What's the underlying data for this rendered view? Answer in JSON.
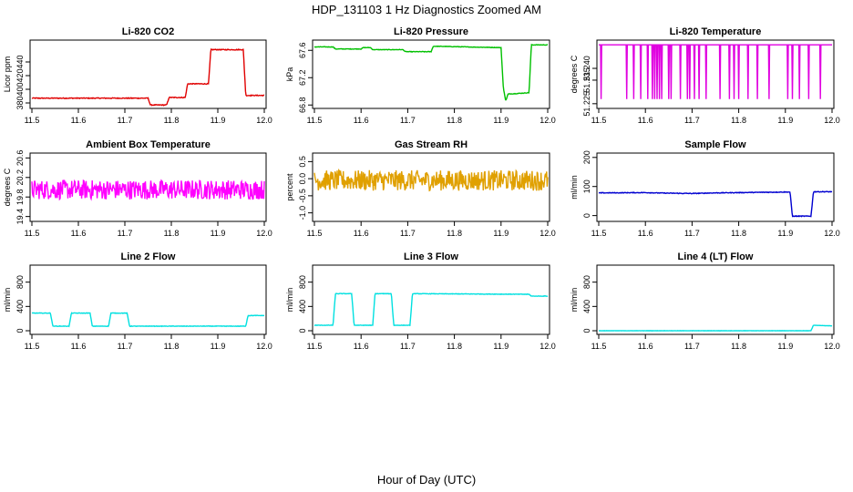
{
  "page": {
    "title": "HDP_131103  1 Hz Diagnostics Zoomed AM",
    "xlabel": "Hour of Day (UTC)"
  },
  "chart_data": [
    {
      "type": "line",
      "title": "Li-820 CO2",
      "ylabel": "Licor ppm",
      "color": "#e00000",
      "xlim": [
        11.5,
        12.0
      ],
      "ylim": [
        372,
        472
      ],
      "yticks": [
        "380",
        "400",
        "420",
        "440"
      ],
      "xticks": [
        "11.5",
        "11.6",
        "11.7",
        "11.8",
        "11.9",
        "12.0"
      ],
      "noise": 0.6,
      "series": [
        {
          "x": [
            11.5,
            11.75,
            11.755,
            11.79,
            11.795,
            11.83,
            11.835,
            11.88,
            11.885,
            11.955,
            11.96,
            12.0
          ],
          "y": [
            387,
            387,
            377,
            377,
            388,
            388,
            408,
            408,
            458,
            458,
            391,
            391
          ]
        }
      ]
    },
    {
      "type": "line",
      "title": "Li-820 Pressure",
      "ylabel": "kPa",
      "color": "#00c000",
      "xlim": [
        11.5,
        12.0
      ],
      "ylim": [
        66.75,
        67.75
      ],
      "yticks": [
        "66.8",
        "67.2",
        "67.6"
      ],
      "xticks": [
        "11.5",
        "11.6",
        "11.7",
        "11.8",
        "11.9",
        "12.0"
      ],
      "noise": 0.004,
      "series": [
        {
          "x": [
            11.5,
            11.54,
            11.545,
            11.6,
            11.605,
            11.62,
            11.625,
            11.69,
            11.695,
            11.75,
            11.755,
            11.9,
            11.905,
            11.91,
            11.915,
            11.96,
            11.965,
            12.0
          ],
          "y": [
            67.65,
            67.65,
            67.62,
            67.62,
            67.64,
            67.64,
            67.61,
            67.61,
            67.58,
            67.58,
            67.66,
            67.64,
            67.05,
            66.86,
            66.96,
            66.98,
            67.68,
            67.68
          ]
        }
      ]
    },
    {
      "type": "line",
      "title": "Li-820 Temperature",
      "ylabel": "degrees C",
      "color": "#e000e0",
      "xlim": [
        11.5,
        12.0
      ],
      "ylim": [
        51.223,
        51.252
      ],
      "yticks": [
        "51.225",
        "51.235",
        "51.240"
      ],
      "xticks": [
        "11.5",
        "11.6",
        "11.7",
        "11.8",
        "11.9",
        "12.0"
      ],
      "high": 51.25,
      "low": 51.227,
      "spikes": [
        11.505,
        11.56,
        11.575,
        11.59,
        11.605,
        11.615,
        11.62,
        11.625,
        11.63,
        11.635,
        11.65,
        11.655,
        11.675,
        11.69,
        11.695,
        11.705,
        11.715,
        11.73,
        11.76,
        11.78,
        11.79,
        11.8,
        11.82,
        11.84,
        11.865,
        11.905,
        11.915,
        11.93,
        11.95,
        11.975
      ]
    },
    {
      "type": "line",
      "title": "Ambient Box Temperature",
      "ylabel": "degrees C",
      "color": "#ff00ff",
      "xlim": [
        11.5,
        12.0
      ],
      "ylim": [
        19.3,
        20.7
      ],
      "yticks": [
        "19.4",
        "19.8",
        "20.2",
        "20.6"
      ],
      "xticks": [
        "11.5",
        "11.6",
        "11.7",
        "11.8",
        "11.9",
        "12.0"
      ],
      "noise": 0.2,
      "series": [
        {
          "x": [
            11.5,
            12.0
          ],
          "y": [
            19.95,
            19.95
          ]
        }
      ]
    },
    {
      "type": "line",
      "title": "Gas Stream RH",
      "ylabel": "percent",
      "color": "#e0a000",
      "xlim": [
        11.5,
        12.0
      ],
      "ylim": [
        -1.25,
        0.75
      ],
      "yticks": [
        "-1.0",
        "-0.5",
        "0.0",
        "0.5"
      ],
      "xticks": [
        "11.5",
        "11.6",
        "11.7",
        "11.8",
        "11.9",
        "12.0"
      ],
      "noise": 0.3,
      "series": [
        {
          "x": [
            11.5,
            12.0
          ],
          "y": [
            -0.05,
            -0.05
          ]
        }
      ]
    },
    {
      "type": "line",
      "title": "Sample Flow",
      "ylabel": "ml/min",
      "color": "#0000d0",
      "xlim": [
        11.5,
        12.0
      ],
      "ylim": [
        -20,
        215
      ],
      "yticks": [
        "0",
        "100",
        "200"
      ],
      "xticks": [
        "11.5",
        "11.6",
        "11.7",
        "11.8",
        "11.9",
        "12.0"
      ],
      "noise": 1.2,
      "series": [
        {
          "x": [
            11.5,
            11.6,
            11.65,
            11.7,
            11.75,
            11.8,
            11.85,
            11.9,
            11.91,
            11.915,
            11.955,
            11.96,
            12.0
          ],
          "y": [
            78,
            79,
            77,
            76,
            78,
            79,
            80,
            81,
            81,
            -2,
            -2,
            82,
            82
          ]
        }
      ]
    },
    {
      "type": "line",
      "title": "Line 2 Flow",
      "ylabel": "ml/min",
      "color": "#00e0e0",
      "xlim": [
        11.5,
        12.0
      ],
      "ylim": [
        -60,
        1080
      ],
      "yticks": [
        "0",
        "400",
        "800"
      ],
      "xticks": [
        "11.5",
        "11.6",
        "11.7",
        "11.8",
        "11.9",
        "12.0"
      ],
      "noise": 4,
      "series": [
        {
          "x": [
            11.5,
            11.54,
            11.545,
            11.58,
            11.585,
            11.625,
            11.63,
            11.665,
            11.67,
            11.705,
            11.71,
            11.96,
            11.965,
            12.0
          ],
          "y": [
            290,
            290,
            75,
            75,
            290,
            290,
            75,
            75,
            290,
            290,
            75,
            75,
            250,
            250
          ]
        }
      ]
    },
    {
      "type": "line",
      "title": "Line 3 Flow",
      "ylabel": "ml/min",
      "color": "#00e0e0",
      "xlim": [
        11.5,
        12.0
      ],
      "ylim": [
        -60,
        1080
      ],
      "yticks": [
        "0",
        "400",
        "800"
      ],
      "xticks": [
        "11.5",
        "11.6",
        "11.7",
        "11.8",
        "11.9",
        "12.0"
      ],
      "noise": 4,
      "series": [
        {
          "x": [
            11.5,
            11.54,
            11.545,
            11.58,
            11.585,
            11.625,
            11.63,
            11.665,
            11.67,
            11.705,
            11.71,
            11.96,
            11.965,
            12.0
          ],
          "y": [
            90,
            90,
            610,
            610,
            90,
            90,
            610,
            610,
            90,
            90,
            610,
            600,
            570,
            570
          ]
        }
      ]
    },
    {
      "type": "line",
      "title": "Line 4 (LT) Flow",
      "ylabel": "ml/min",
      "color": "#00e0e0",
      "xlim": [
        11.5,
        12.0
      ],
      "ylim": [
        -60,
        1080
      ],
      "yticks": [
        "0",
        "400",
        "800"
      ],
      "xticks": [
        "11.5",
        "11.6",
        "11.7",
        "11.8",
        "11.9",
        "12.0"
      ],
      "noise": 2,
      "series": [
        {
          "x": [
            11.5,
            11.955,
            11.96,
            12.0
          ],
          "y": [
            0,
            0,
            90,
            80
          ]
        }
      ]
    }
  ]
}
